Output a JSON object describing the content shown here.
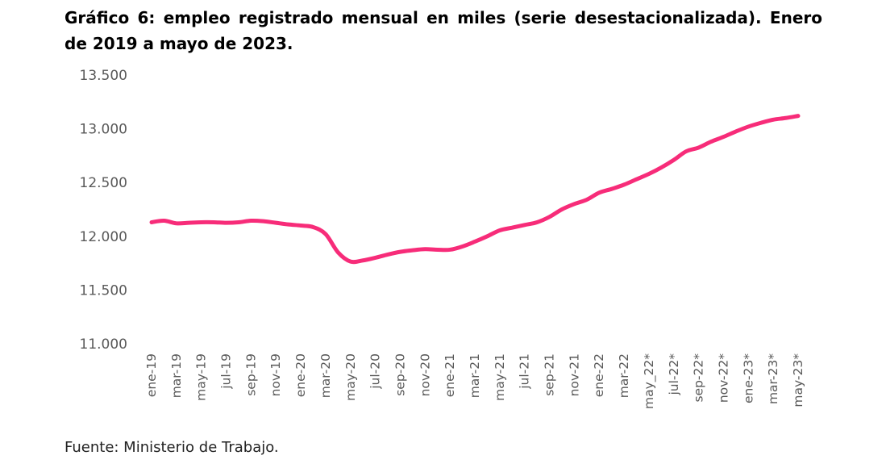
{
  "title": "Gráfico 6: empleo registrado mensual en miles (serie desestacionalizada). Enero de 2019 a mayo de 2023.",
  "source": "Fuente: Ministerio de Trabajo.",
  "chart_data": {
    "type": "line",
    "title": "Gráfico 6: empleo registrado mensual en miles (serie desestacionalizada). Enero de 2019 a mayo de 2023.",
    "xlabel": "",
    "ylabel": "",
    "ylim": [
      11000,
      13500
    ],
    "yticks": [
      11000,
      11500,
      12000,
      12500,
      13000,
      13500
    ],
    "ytick_labels": [
      "11.000",
      "11.500",
      "12.000",
      "12.500",
      "13.000",
      "13.500"
    ],
    "grid": false,
    "legend": "none",
    "line_color": "#F72C79",
    "x": [
      "ene-19",
      "feb-19",
      "mar-19",
      "abr-19",
      "may-19",
      "jun-19",
      "jul-19",
      "ago-19",
      "sep-19",
      "oct-19",
      "nov-19",
      "dic-19",
      "ene-20",
      "feb-20",
      "mar-20",
      "abr-20",
      "may-20",
      "jun-20",
      "jul-20",
      "ago-20",
      "sep-20",
      "oct-20",
      "nov-20",
      "dic-20",
      "ene-21",
      "feb-21",
      "mar-21",
      "abr-21",
      "may-21",
      "jun-21",
      "jul-21",
      "ago-21",
      "sep-21",
      "oct-21",
      "nov-21",
      "dic-21",
      "ene-22",
      "feb-22",
      "mar-22",
      "abr-22",
      "may_22*",
      "jun-22*",
      "jul-22*",
      "ago-22*",
      "sep-22*",
      "oct-22*",
      "nov-22*",
      "dic-22*",
      "ene-23*",
      "feb-23*",
      "mar-23*",
      "abr-23*",
      "may-23*"
    ],
    "tick_labels": [
      "ene-19",
      "mar-19",
      "may-19",
      "jul-19",
      "sep-19",
      "nov-19",
      "ene-20",
      "mar-20",
      "may-20",
      "jul-20",
      "sep-20",
      "nov-20",
      "ene-21",
      "mar-21",
      "may-21",
      "jul-21",
      "sep-21",
      "nov-21",
      "ene-22",
      "mar-22",
      "may_22*",
      "jul-22*",
      "sep-22*",
      "nov-22*",
      "ene-23*",
      "mar-23*",
      "may-23*"
    ],
    "series": [
      {
        "values": [
          12130,
          12145,
          12120,
          12125,
          12130,
          12130,
          12125,
          12130,
          12145,
          12140,
          12125,
          12110,
          12100,
          12085,
          12020,
          11850,
          11765,
          11775,
          11800,
          11830,
          11855,
          11870,
          11880,
          11875,
          11875,
          11905,
          11950,
          12000,
          12055,
          12080,
          12105,
          12130,
          12180,
          12250,
          12300,
          12340,
          12405,
          12440,
          12480,
          12530,
          12580,
          12640,
          12710,
          12790,
          12825,
          12880,
          12925,
          12975,
          13020,
          13055,
          13085,
          13100,
          13120
        ]
      }
    ]
  }
}
